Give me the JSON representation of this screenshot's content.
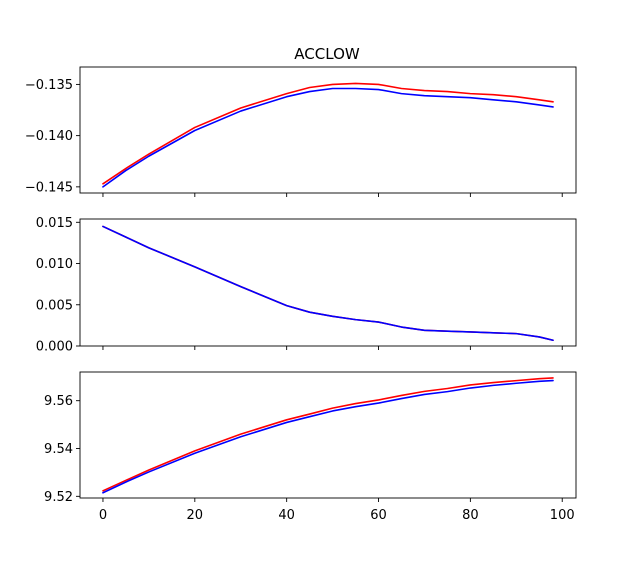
{
  "chart_data": {
    "type": "line",
    "title": "ACCLOW",
    "xlim": [
      -5,
      103
    ],
    "xticks": [
      0,
      20,
      40,
      60,
      80,
      100
    ],
    "xtick_labels": [
      "0",
      "20",
      "40",
      "60",
      "80",
      "100"
    ],
    "colors": {
      "red_series": "#ff0000",
      "blue_series": "#0000ff"
    },
    "subplots": [
      {
        "ylim": [
          -0.1456,
          -0.1333
        ],
        "yticks": [
          -0.145,
          -0.14,
          -0.135
        ],
        "ytick_labels": [
          "−0.145",
          "−0.140",
          "−0.135"
        ],
        "series": [
          {
            "color": "#ff0000",
            "x": [
              0,
              5,
              10,
              20,
              30,
              40,
              45,
              50,
              55,
              60,
              65,
              70,
              75,
              80,
              85,
              90,
              95,
              98
            ],
            "y": [
              -0.1447,
              -0.1432,
              -0.1418,
              -0.1392,
              -0.1373,
              -0.1359,
              -0.1353,
              -0.135,
              -0.1349,
              -0.135,
              -0.1354,
              -0.1356,
              -0.1357,
              -0.1359,
              -0.136,
              -0.1362,
              -0.1365,
              -0.1367
            ]
          },
          {
            "color": "#0000ff",
            "x": [
              0,
              5,
              10,
              20,
              30,
              40,
              45,
              50,
              55,
              60,
              65,
              70,
              75,
              80,
              85,
              90,
              95,
              98
            ],
            "y": [
              -0.145,
              -0.1434,
              -0.142,
              -0.1395,
              -0.1376,
              -0.1362,
              -0.1357,
              -0.1354,
              -0.1354,
              -0.1355,
              -0.1359,
              -0.1361,
              -0.1362,
              -0.1363,
              -0.1365,
              -0.1367,
              -0.137,
              -0.1372
            ]
          }
        ]
      },
      {
        "ylim": [
          0.0,
          0.0154
        ],
        "yticks": [
          0.0,
          0.005,
          0.01,
          0.015
        ],
        "ytick_labels": [
          "0.000",
          "0.005",
          "0.010",
          "0.015"
        ],
        "series": [
          {
            "color": "#ff0000",
            "x": [
              0,
              5,
              10,
              20,
              30,
              40,
              45,
              50,
              55,
              60,
              65,
              70,
              75,
              80,
              85,
              90,
              95,
              98
            ],
            "y": [
              0.0145,
              0.0132,
              0.0119,
              0.0096,
              0.0072,
              0.0049,
              0.0041,
              0.0036,
              0.0032,
              0.0029,
              0.0023,
              0.0019,
              0.0018,
              0.0017,
              0.0016,
              0.0015,
              0.0011,
              0.0007
            ]
          },
          {
            "color": "#0000ff",
            "x": [
              0,
              5,
              10,
              20,
              30,
              40,
              45,
              50,
              55,
              60,
              65,
              70,
              75,
              80,
              85,
              90,
              95,
              98
            ],
            "y": [
              0.0145,
              0.0132,
              0.0119,
              0.0096,
              0.0072,
              0.0049,
              0.0041,
              0.0036,
              0.0032,
              0.0029,
              0.0023,
              0.0019,
              0.0018,
              0.0017,
              0.0016,
              0.0015,
              0.0011,
              0.0007
            ]
          }
        ]
      },
      {
        "ylim": [
          9.5193,
          9.572
        ],
        "yticks": [
          9.52,
          9.54,
          9.56
        ],
        "ytick_labels": [
          "9.52",
          "9.54",
          "9.56"
        ],
        "series": [
          {
            "color": "#ff0000",
            "x": [
              0,
              5,
              10,
              20,
              30,
              40,
              45,
              50,
              55,
              60,
              65,
              70,
              75,
              80,
              85,
              90,
              95,
              98
            ],
            "y": [
              9.5223,
              9.5267,
              9.531,
              9.539,
              9.546,
              9.552,
              9.5544,
              9.5569,
              9.5588,
              9.5603,
              9.5622,
              9.5639,
              9.5651,
              9.5666,
              9.5676,
              9.5684,
              9.5692,
              9.5695
            ]
          },
          {
            "color": "#0000ff",
            "x": [
              0,
              5,
              10,
              20,
              30,
              40,
              45,
              50,
              55,
              60,
              65,
              70,
              75,
              80,
              85,
              90,
              95,
              98
            ],
            "y": [
              9.5215,
              9.526,
              9.5302,
              9.538,
              9.5449,
              9.5509,
              9.5533,
              9.5557,
              9.5575,
              9.559,
              9.5609,
              9.5626,
              9.5638,
              9.5653,
              9.5664,
              9.5673,
              9.5681,
              9.5684
            ]
          }
        ]
      }
    ]
  }
}
